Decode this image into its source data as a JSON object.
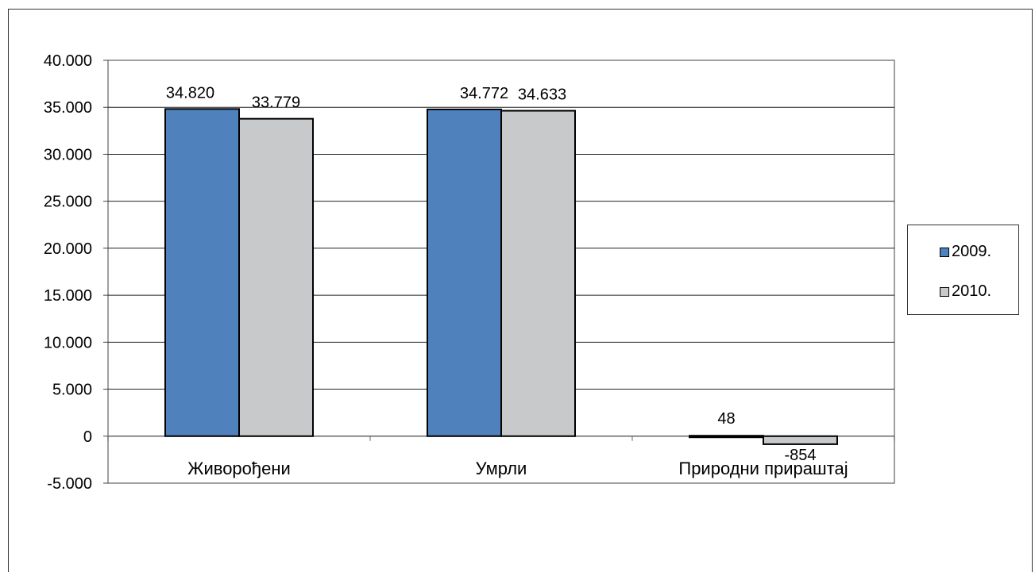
{
  "chart_data": {
    "type": "bar",
    "title": "",
    "xlabel": "",
    "ylabel": "",
    "categories": [
      "Живорођени",
      "Умрли",
      "Природни прираштај"
    ],
    "series": [
      {
        "name": "2009.",
        "values": [
          34820,
          34772,
          48
        ],
        "labels": [
          "34.820",
          "34.772",
          "48"
        ],
        "color": "#4f81bd"
      },
      {
        "name": "2010.",
        "values": [
          33779,
          34633,
          -854
        ],
        "labels": [
          "33.779",
          "34.633",
          "-854"
        ],
        "color": "#c8c9cb"
      }
    ],
    "ylim": [
      -5000,
      40000
    ],
    "yticks": [
      -5000,
      0,
      5000,
      10000,
      15000,
      20000,
      25000,
      30000,
      35000,
      40000
    ],
    "ytick_labels": [
      "-5.000",
      "0",
      "5.000",
      "10.000",
      "15.000",
      "20.000",
      "25.000",
      "30.000",
      "35.000",
      "40.000"
    ],
    "grid": true,
    "legend_position": "right"
  }
}
